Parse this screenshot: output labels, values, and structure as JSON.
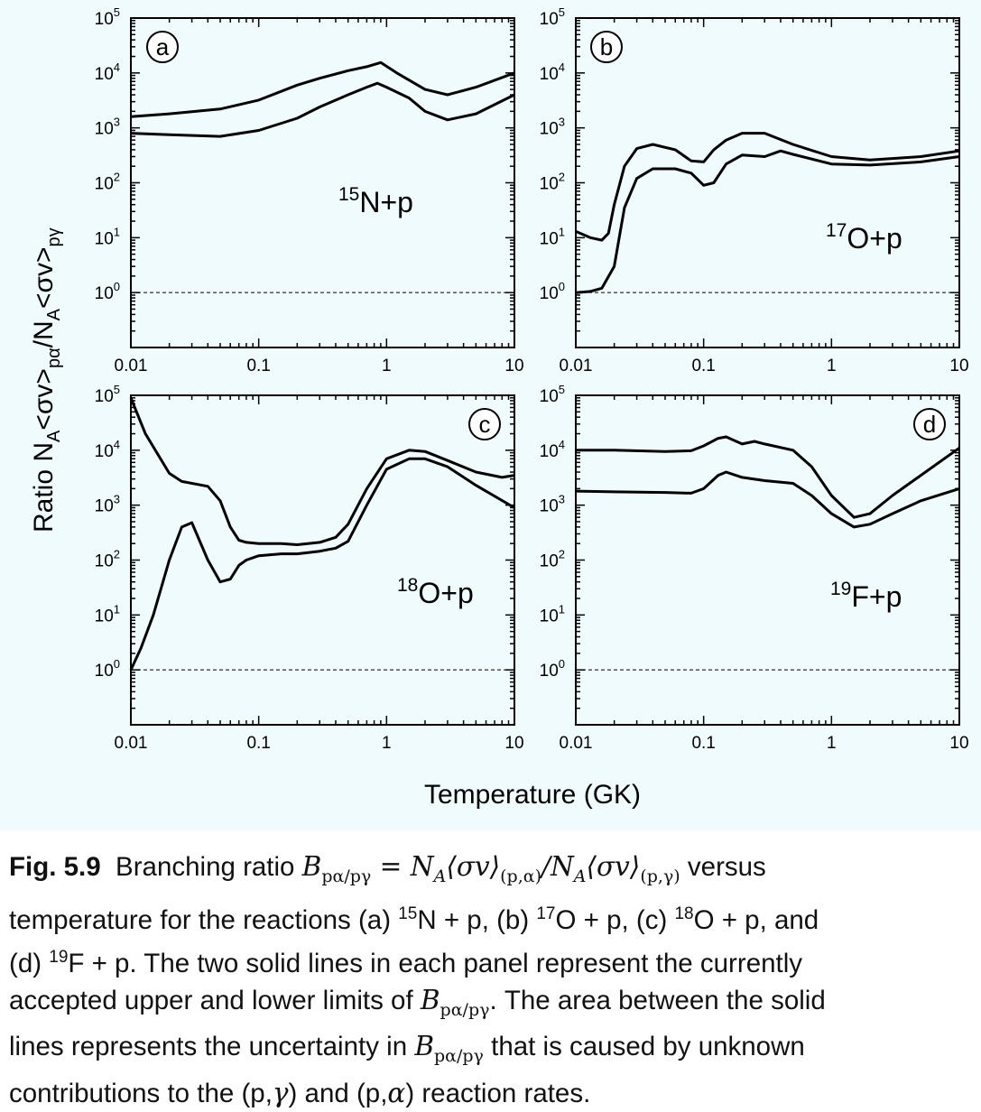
{
  "figure": {
    "ylabel_main": "Ratio N",
    "ylabel_sub1": "A",
    "ylabel_part2": "<σv>",
    "ylabel_sub2": "pα",
    "ylabel_part3": "/N",
    "ylabel_sub3": "A",
    "ylabel_part4": "<σv>",
    "ylabel_sub4": "pγ",
    "xlabel": "Temperature  (GK)"
  },
  "chart_data": [
    {
      "type": "line",
      "panel_label": "a",
      "reaction_mass": "15",
      "reaction_rest": "N+p",
      "x_scale": "log",
      "y_scale": "log",
      "xlim": [
        0.01,
        10
      ],
      "ylim": [
        0.1,
        100000
      ],
      "xticks": [
        "0.01",
        "0.1",
        "1",
        "10"
      ],
      "yticks": [
        {
          "base": "10",
          "exp": "0"
        },
        {
          "base": "10",
          "exp": "1"
        },
        {
          "base": "10",
          "exp": "2"
        },
        {
          "base": "10",
          "exp": "3"
        },
        {
          "base": "10",
          "exp": "4"
        },
        {
          "base": "10",
          "exp": "5"
        }
      ],
      "reference_line": 1,
      "series": [
        {
          "x": [
            0.01,
            0.02,
            0.05,
            0.1,
            0.2,
            0.3,
            0.5,
            0.7,
            0.9,
            1.2,
            2,
            3,
            5,
            10
          ],
          "y": [
            1600,
            1800,
            2200,
            3200,
            6000,
            8000,
            11000,
            13000,
            15500,
            10000,
            5000,
            4000,
            5500,
            10000
          ]
        },
        {
          "x": [
            0.01,
            0.02,
            0.05,
            0.1,
            0.2,
            0.3,
            0.5,
            0.7,
            0.85,
            1.0,
            1.5,
            2,
            3,
            5,
            10
          ],
          "y": [
            800,
            750,
            700,
            900,
            1500,
            2400,
            4000,
            5500,
            6500,
            5500,
            3500,
            2000,
            1400,
            1800,
            4000
          ]
        }
      ]
    },
    {
      "type": "line",
      "panel_label": "b",
      "reaction_mass": "17",
      "reaction_rest": "O+p",
      "x_scale": "log",
      "y_scale": "log",
      "xlim": [
        0.01,
        10
      ],
      "ylim": [
        0.1,
        100000
      ],
      "xticks": [
        "0.01",
        "0.1",
        "1",
        "10"
      ],
      "yticks": [
        {
          "base": "10",
          "exp": "0"
        },
        {
          "base": "10",
          "exp": "1"
        },
        {
          "base": "10",
          "exp": "2"
        },
        {
          "base": "10",
          "exp": "3"
        },
        {
          "base": "10",
          "exp": "4"
        },
        {
          "base": "10",
          "exp": "5"
        }
      ],
      "reference_line": 1,
      "series": [
        {
          "x": [
            0.01,
            0.013,
            0.016,
            0.018,
            0.02,
            0.024,
            0.03,
            0.04,
            0.06,
            0.08,
            0.1,
            0.12,
            0.15,
            0.2,
            0.3,
            0.5,
            1,
            2,
            5,
            10
          ],
          "y": [
            13,
            10,
            9,
            12,
            40,
            200,
            420,
            500,
            400,
            250,
            240,
            400,
            600,
            800,
            800,
            500,
            300,
            260,
            300,
            380
          ]
        },
        {
          "x": [
            0.01,
            0.013,
            0.016,
            0.02,
            0.024,
            0.03,
            0.04,
            0.06,
            0.08,
            0.1,
            0.12,
            0.15,
            0.2,
            0.3,
            0.4,
            0.5,
            1,
            2,
            5,
            10
          ],
          "y": [
            1,
            1.05,
            1.2,
            3,
            35,
            120,
            180,
            180,
            150,
            90,
            100,
            220,
            320,
            300,
            380,
            330,
            220,
            210,
            240,
            300
          ]
        }
      ]
    },
    {
      "type": "line",
      "panel_label": "c",
      "reaction_mass": "18",
      "reaction_rest": "O+p",
      "x_scale": "log",
      "y_scale": "log",
      "xlim": [
        0.01,
        10
      ],
      "ylim": [
        0.1,
        100000
      ],
      "xticks": [
        "0.01",
        "0.1",
        "1",
        "10"
      ],
      "yticks": [
        {
          "base": "10",
          "exp": "0"
        },
        {
          "base": "10",
          "exp": "1"
        },
        {
          "base": "10",
          "exp": "2"
        },
        {
          "base": "10",
          "exp": "3"
        },
        {
          "base": "10",
          "exp": "4"
        },
        {
          "base": "10",
          "exp": "5"
        }
      ],
      "reference_line": 1,
      "series": [
        {
          "x": [
            0.01,
            0.013,
            0.02,
            0.025,
            0.04,
            0.05,
            0.06,
            0.07,
            0.08,
            0.1,
            0.15,
            0.2,
            0.3,
            0.4,
            0.5,
            0.7,
            1,
            1.5,
            2,
            3,
            5,
            8,
            10
          ],
          "y": [
            90000,
            20000,
            3800,
            2700,
            2200,
            1200,
            400,
            230,
            210,
            200,
            200,
            190,
            210,
            260,
            450,
            2000,
            7000,
            10000,
            9500,
            6500,
            4000,
            3200,
            3500
          ]
        },
        {
          "x": [
            0.01,
            0.012,
            0.015,
            0.02,
            0.025,
            0.03,
            0.04,
            0.05,
            0.06,
            0.07,
            0.08,
            0.1,
            0.15,
            0.2,
            0.3,
            0.4,
            0.5,
            0.7,
            1,
            1.5,
            2,
            3,
            5,
            10
          ],
          "y": [
            1,
            2.5,
            10,
            100,
            400,
            480,
            100,
            40,
            45,
            80,
            100,
            120,
            130,
            130,
            145,
            165,
            220,
            1000,
            4500,
            7000,
            7000,
            5000,
            2300,
            900
          ]
        }
      ]
    },
    {
      "type": "line",
      "panel_label": "d",
      "reaction_mass": "19",
      "reaction_rest": "F+p",
      "x_scale": "log",
      "y_scale": "log",
      "xlim": [
        0.01,
        10
      ],
      "ylim": [
        0.1,
        100000
      ],
      "xticks": [
        "0.01",
        "0.1",
        "1",
        "10"
      ],
      "yticks": [
        {
          "base": "10",
          "exp": "0"
        },
        {
          "base": "10",
          "exp": "1"
        },
        {
          "base": "10",
          "exp": "2"
        },
        {
          "base": "10",
          "exp": "3"
        },
        {
          "base": "10",
          "exp": "4"
        },
        {
          "base": "10",
          "exp": "5"
        }
      ],
      "reference_line": 1,
      "series": [
        {
          "x": [
            0.01,
            0.02,
            0.05,
            0.08,
            0.1,
            0.13,
            0.15,
            0.2,
            0.25,
            0.3,
            0.5,
            0.7,
            1,
            1.5,
            2,
            3,
            5,
            10
          ],
          "y": [
            10000,
            10000,
            9500,
            9800,
            12000,
            16500,
            17500,
            13000,
            14500,
            13000,
            10000,
            5000,
            1500,
            600,
            700,
            1500,
            3500,
            11000
          ]
        },
        {
          "x": [
            0.01,
            0.02,
            0.05,
            0.08,
            0.1,
            0.13,
            0.15,
            0.2,
            0.3,
            0.5,
            0.7,
            1,
            1.5,
            2,
            3,
            5,
            10
          ],
          "y": [
            1800,
            1750,
            1700,
            1650,
            2000,
            3500,
            4000,
            3200,
            2800,
            2500,
            1500,
            700,
            400,
            450,
            700,
            1200,
            2000
          ]
        }
      ]
    }
  ],
  "caption": {
    "label": "Fig. 5.9",
    "seg1": "Branching ratio ",
    "math1": "B",
    "math1_sub": "pα/pγ",
    "math1_eq": " = N",
    "math1_sub2": "A",
    "math1_rest": "⟨σv⟩",
    "math1_sub3": "(p,α)",
    "math1_slash": "/N",
    "math1_sub4": "A",
    "math1_rest2": "⟨σv⟩",
    "math1_sub5": "(p,γ)",
    "seg2": " versus",
    "line2a": "temperature for the reactions (a) ",
    "line2_n": "15",
    "line2b": "N + p, (b) ",
    "line2_o17": "17",
    "line2c": "O + p, (c) ",
    "line2_o18": "18",
    "line2d": "O + p, and",
    "line3a": "(d) ",
    "line3_f": "19",
    "line3b": "F + p. The two solid lines in each panel represent the currently",
    "line4a": "accepted upper and lower limits of ",
    "line4_b": "B",
    "line4_sub": "pα/pγ",
    "line4b": ". The area between the solid",
    "line5a": "lines represents the uncertainty in ",
    "line5_b": "B",
    "line5_sub": "pα/pγ",
    "line5b": " that is caused by unknown",
    "line6a": "contributions to the (p,",
    "line6_g": "γ",
    "line6b": ") and (p,",
    "line6_a": "α",
    "line6c": ") reaction rates."
  }
}
